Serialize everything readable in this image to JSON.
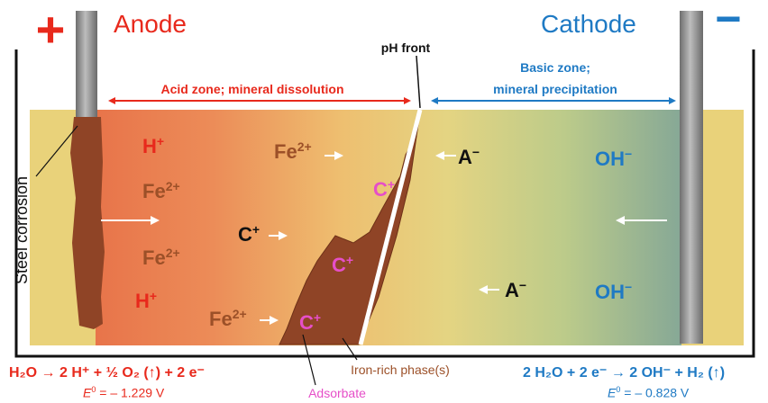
{
  "labels": {
    "anode": "Anode",
    "cathode": "Cathode",
    "plus_sign": "+",
    "minus_sign": "−",
    "ph_front": "pH front",
    "acid_zone": "Acid zone; mineral dissolution",
    "basic_zone_line1": "Basic zone;",
    "basic_zone_line2": "mineral precipitation",
    "steel_corrosion": "Steel corrosion",
    "iron_rich_phase": "Iron-rich phase(s)",
    "adsorbate": "Adsorbate"
  },
  "species": {
    "h_plus": "H",
    "h_plus_sup": "+",
    "fe": "Fe",
    "fe_sup": "2+",
    "c": "C",
    "c_sup": "+",
    "a": "A",
    "a_sup": "−",
    "oh": "OH",
    "oh_sup": "−"
  },
  "equations": {
    "anode_reaction": "H₂O → 2 H⁺ + ½ O₂ (↑) + 2 e⁻",
    "anode_potential_symbol": "E",
    "anode_potential_sup": "0",
    "anode_potential_value": " = – 1.229 V",
    "cathode_reaction": "2 H₂O + 2 e⁻ → 2 OH⁻ + H₂ (↑)",
    "cathode_potential_symbol": "E",
    "cathode_potential_sup": "0",
    "cathode_potential_value": " = – 0.828 V"
  },
  "colors": {
    "acid_red": "#e8291c",
    "base_blue": "#1f7ac4",
    "fe_brown": "#9c5028",
    "adsorbate_pink": "#e64fc8",
    "soil_yellow": "#e9d27a",
    "electrode_gray": "#8c8c8c",
    "rust": "#8f4426"
  }
}
